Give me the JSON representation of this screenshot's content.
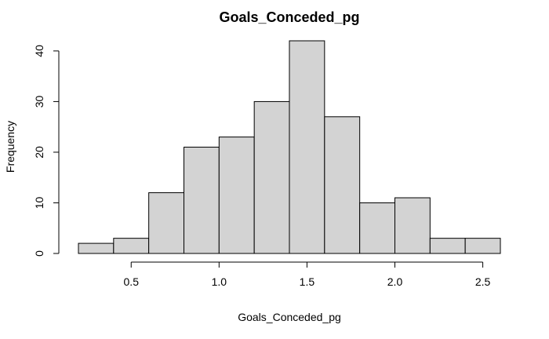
{
  "chart_data": {
    "type": "bar",
    "title": "Goals_Conceded_pg",
    "xlabel": "Goals_Conceded_pg",
    "ylabel": "Frequency",
    "bins": [
      {
        "start": 0.2,
        "end": 0.4,
        "count": 2
      },
      {
        "start": 0.4,
        "end": 0.6,
        "count": 3
      },
      {
        "start": 0.6,
        "end": 0.8,
        "count": 12
      },
      {
        "start": 0.8,
        "end": 1.0,
        "count": 21
      },
      {
        "start": 1.0,
        "end": 1.2,
        "count": 23
      },
      {
        "start": 1.2,
        "end": 1.4,
        "count": 30
      },
      {
        "start": 1.4,
        "end": 1.6,
        "count": 42
      },
      {
        "start": 1.6,
        "end": 1.8,
        "count": 27
      },
      {
        "start": 1.8,
        "end": 2.0,
        "count": 10
      },
      {
        "start": 2.0,
        "end": 2.2,
        "count": 11
      },
      {
        "start": 2.2,
        "end": 2.4,
        "count": 3
      },
      {
        "start": 2.4,
        "end": 2.6,
        "count": 3
      }
    ],
    "xlim": [
      0.2,
      2.6
    ],
    "ylim": [
      0,
      42
    ],
    "x_ticks": [
      0.5,
      1.0,
      1.5,
      2.0,
      2.5
    ],
    "x_tick_labels": [
      "0.5",
      "1.0",
      "1.5",
      "2.0",
      "2.5"
    ],
    "y_ticks": [
      0,
      10,
      20,
      30,
      40
    ],
    "y_tick_labels": [
      "0",
      "10",
      "20",
      "30",
      "40"
    ],
    "bar_fill": "#d3d3d3",
    "bar_stroke": "#000000",
    "grid": false,
    "legend": "none"
  }
}
